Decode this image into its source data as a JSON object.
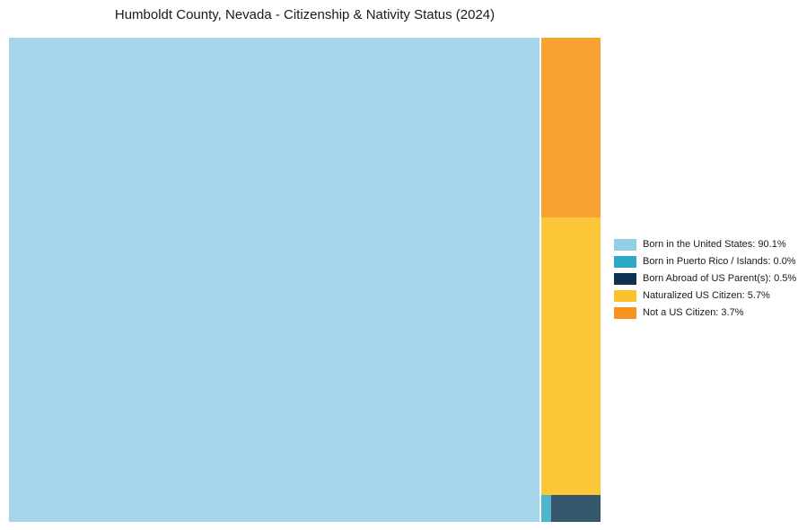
{
  "title": "Humboldt County, Nevada - Citizenship & Nativity Status (2024)",
  "chart_data": {
    "type": "treemap",
    "title": "Humboldt County, Nevada - Citizenship & Nativity Status (2024)",
    "categories": [
      "Born in the United States",
      "Born in Puerto Rico / Islands",
      "Born Abroad of US Parent(s)",
      "Naturalized US Citizen",
      "Not a US Citizen"
    ],
    "values": [
      90.1,
      0.0,
      0.5,
      5.7,
      3.7
    ],
    "unit": "%",
    "legend_position": "right",
    "layout": "large left cell; right column stacked top-to-bottom: Not a US Citizen, Naturalized US Citizen, then bottom strip with Born in Puerto Rico / Islands and Born Abroad of US Parent(s)"
  },
  "cells": {
    "born_in_us": {
      "label": "Born in the United States",
      "value_pct": 90.1,
      "color": "#A6D4E9"
    },
    "not_citizen": {
      "label": "Not a US Citizen",
      "value_pct": 3.7,
      "color": "#F9A132"
    },
    "naturalized": {
      "label": "Naturalized US Citizen",
      "value_pct": 5.7,
      "color": "#FDC638"
    },
    "born_pr": {
      "label": "Born in Puerto Rico / Islands",
      "value_pct": 0.0,
      "color": "#4DB4CB"
    },
    "born_abroad": {
      "label": "Born Abroad of US Parent(s)",
      "value_pct": 0.5,
      "color": "#34576B"
    }
  },
  "legend": {
    "items": [
      {
        "text": "Born in the United States: 90.1%",
        "swatch_color": "#92CEE4"
      },
      {
        "text": "Born in Puerto Rico / Islands: 0.0%",
        "swatch_color": "#2EA9C5"
      },
      {
        "text": "Born Abroad of US Parent(s): 0.5%",
        "swatch_color": "#0D3151"
      },
      {
        "text": "Naturalized US Citizen: 5.7%",
        "swatch_color": "#FDC12E"
      },
      {
        "text": "Not a US Citizen: 3.7%",
        "swatch_color": "#F7941F"
      }
    ]
  }
}
